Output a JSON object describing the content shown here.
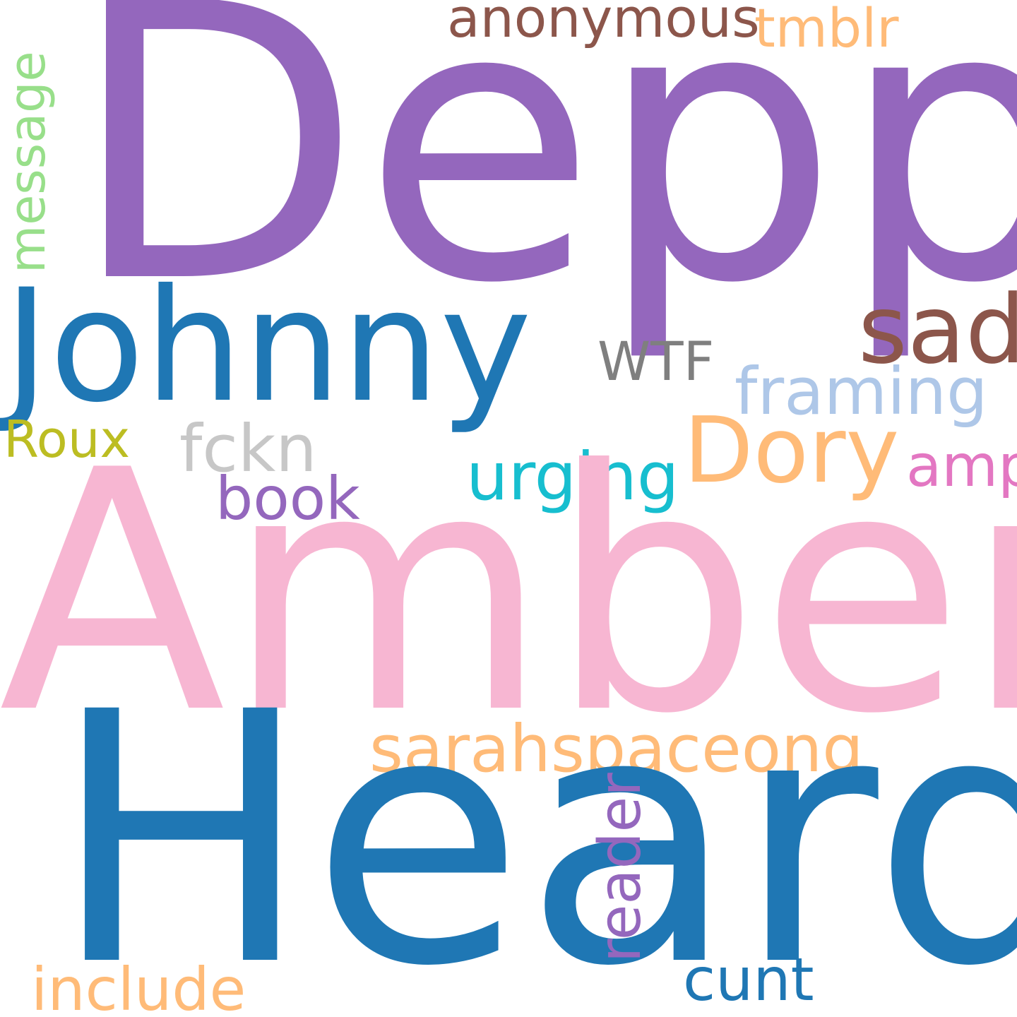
{
  "words": {
    "depp": {
      "text": "Depp",
      "color": "#9467bd"
    },
    "amber": {
      "text": "Amber",
      "color": "#f7b6d2"
    },
    "heard": {
      "text": "Heard",
      "color": "#1f77b4"
    },
    "johnny": {
      "text": "Johnny",
      "color": "#1f77b4"
    },
    "sad": {
      "text": "sad",
      "color": "#8c564b"
    },
    "anonymous": {
      "text": "anonymous",
      "color": "#8c564b"
    },
    "tmblr": {
      "text": "tmblr",
      "color": "#ffbb78"
    },
    "message": {
      "text": "message",
      "color": "#98df8a"
    },
    "wtf": {
      "text": "WTF",
      "color": "#7f7f7f"
    },
    "framing": {
      "text": "framing",
      "color": "#aec7e8"
    },
    "dory": {
      "text": "Dory",
      "color": "#ffbb78"
    },
    "roux": {
      "text": "Roux",
      "color": "#bcbd22"
    },
    "fckn": {
      "text": "fckn",
      "color": "#c7c7c7"
    },
    "urging": {
      "text": "urging",
      "color": "#17becf"
    },
    "amp": {
      "text": "amp",
      "color": "#e377c2"
    },
    "book": {
      "text": "book",
      "color": "#9467bd"
    },
    "sarahspaceong": {
      "text": "sarahspaceong",
      "color": "#ffbb78"
    },
    "reader": {
      "text": "reader",
      "color": "#9467bd"
    },
    "include": {
      "text": "include",
      "color": "#ffbb78"
    },
    "cunt": {
      "text": "cunt",
      "color": "#1f77b4"
    }
  }
}
